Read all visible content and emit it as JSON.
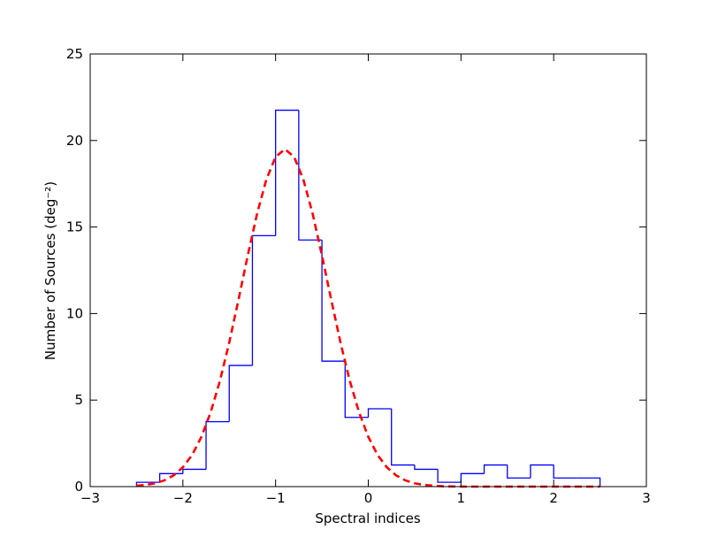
{
  "chart_data": {
    "type": "histogram",
    "xlabel": "Spectral indices",
    "ylabel": "Number of Sources (deg⁻²)",
    "bins": [
      -2.5,
      -2.25,
      -2.0,
      -1.75,
      -1.5,
      -1.25,
      -1.0,
      -0.75,
      -0.5,
      -0.25,
      0.0,
      0.25,
      0.5,
      0.75,
      1.0,
      1.25,
      1.5,
      1.75,
      2.0,
      2.25,
      2.5
    ],
    "counts": [
      0.25,
      0.75,
      1.0,
      3.75,
      7.0,
      14.5,
      21.75,
      14.25,
      7.25,
      4.0,
      4.5,
      1.25,
      1.0,
      0.25,
      0.75,
      1.25,
      0.5,
      1.25,
      0.5,
      0.5
    ],
    "color": "#0000ff",
    "fit": {
      "color": "#ff0000",
      "style": "dashed",
      "x": [
        -2.5,
        -2.4,
        -2.3,
        -2.2,
        -2.1,
        -2.0,
        -1.9,
        -1.8,
        -1.7,
        -1.6,
        -1.5,
        -1.4,
        -1.3,
        -1.2,
        -1.1,
        -1.0,
        -0.9,
        -0.8,
        -0.7,
        -0.6,
        -0.5,
        -0.4,
        -0.3,
        -0.2,
        -0.1,
        0.0,
        0.1,
        0.2,
        0.3,
        0.4,
        0.5,
        0.6,
        0.7,
        0.8,
        0.9,
        1.0,
        1.1,
        1.2,
        1.3,
        1.4,
        1.5,
        1.6,
        1.7,
        1.8,
        1.9,
        2.0,
        2.1,
        2.2,
        2.3,
        2.4,
        2.5
      ],
      "values": [
        0.05,
        0.1,
        0.19,
        0.36,
        0.65,
        1.12,
        1.83,
        2.88,
        4.3,
        6.12,
        8.33,
        10.8,
        13.36,
        15.76,
        17.74,
        19.05,
        19.5,
        19.05,
        17.74,
        15.76,
        13.36,
        10.8,
        8.33,
        6.12,
        4.3,
        2.88,
        1.83,
        1.12,
        0.65,
        0.36,
        0.19,
        0.1,
        0.05,
        0.02,
        0.01,
        0,
        0,
        0,
        0,
        0,
        0,
        0,
        0,
        0,
        0,
        0,
        0,
        0,
        0,
        0,
        0
      ]
    },
    "xlim": [
      -3,
      3
    ],
    "xticks": [
      {
        "value": -3,
        "label": "−3"
      },
      {
        "value": -2,
        "label": "−2"
      },
      {
        "value": -1,
        "label": "−1"
      },
      0,
      1,
      2,
      3
    ],
    "ylim": [
      0,
      25
    ],
    "yticks": [
      0,
      5,
      10,
      15,
      20,
      25
    ]
  }
}
